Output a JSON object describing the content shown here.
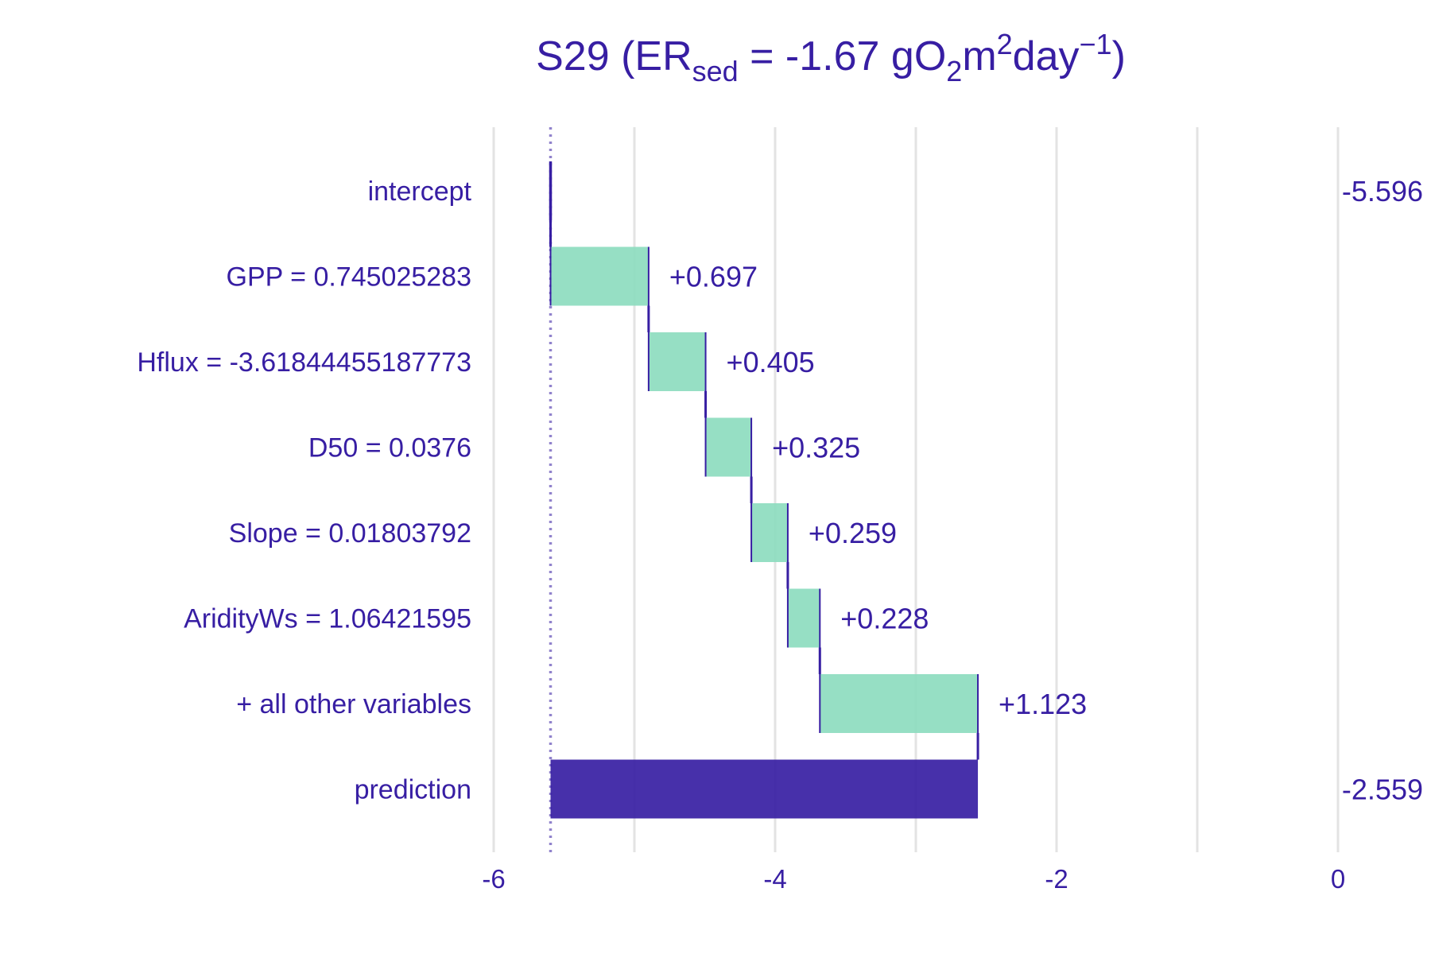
{
  "chart_data": {
    "type": "bar",
    "title": {
      "main": "S29 (ER",
      "sub1": "sed",
      "mid1": " = -1.67 gO",
      "sub2": "2",
      "mid2": "m",
      "sup1": "2",
      "mid3": "day",
      "sup2": "−1",
      "end": ")"
    },
    "xlim": [
      -6,
      0
    ],
    "x_ticks": [
      -6,
      -4,
      -2,
      0
    ],
    "x_tick_labels": [
      "-6",
      "-4",
      "-2",
      "0"
    ],
    "grid": true,
    "baseline": -5.596,
    "rows": [
      {
        "label": "intercept",
        "kind": "intercept",
        "start": -5.596,
        "end": -5.596,
        "value_label": "-5.596"
      },
      {
        "label": "GPP = 0.745025283",
        "kind": "contribution",
        "start": -5.596,
        "end": -4.899,
        "value_label": "+0.697"
      },
      {
        "label": "Hflux = -3.61844455187773",
        "kind": "contribution",
        "start": -4.899,
        "end": -4.494,
        "value_label": "+0.405"
      },
      {
        "label": "D50 = 0.0376",
        "kind": "contribution",
        "start": -4.494,
        "end": -4.169,
        "value_label": "+0.325"
      },
      {
        "label": "Slope = 0.01803792",
        "kind": "contribution",
        "start": -4.169,
        "end": -3.91,
        "value_label": "+0.259"
      },
      {
        "label": "AridityWs = 1.06421595",
        "kind": "contribution",
        "start": -3.91,
        "end": -3.682,
        "value_label": "+0.228"
      },
      {
        "label": "+ all other variables",
        "kind": "contribution",
        "start": -3.682,
        "end": -2.559,
        "value_label": "+1.123"
      },
      {
        "label": "prediction",
        "kind": "prediction",
        "start": -5.596,
        "end": -2.559,
        "value_label": "-2.559"
      }
    ],
    "colors": {
      "positive": "#8bdcbe",
      "prediction": "#371ea3",
      "text": "#371ea3",
      "grid": "#e3e3e3"
    }
  }
}
